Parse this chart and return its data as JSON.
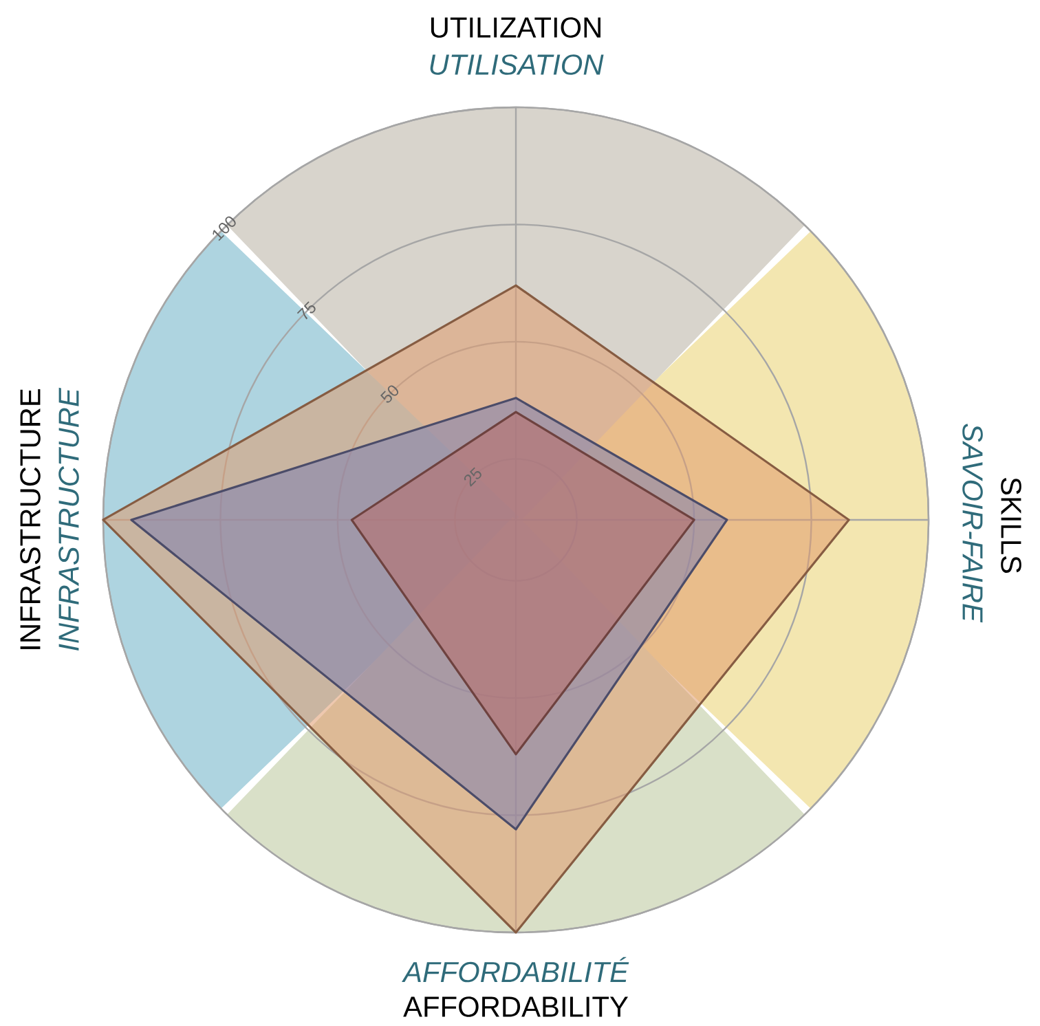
{
  "chart_data": {
    "type": "radar",
    "categories": [
      "UTILIZATION",
      "SKILLS",
      "AFFORDABILITY",
      "INFRASTRUCTURE"
    ],
    "annotations": [
      "UTILISATION",
      "SAVOIR-FAIRE",
      "AFFORDABILITÉ",
      "INFRASTRUCTURE"
    ],
    "ylim": [
      12,
      100
    ],
    "yticks": [
      25,
      50,
      75,
      100
    ],
    "grid": true,
    "series": [
      {
        "color": "#e09a6e",
        "values": [
          62,
          83,
          100,
          100
        ]
      },
      {
        "color": "#7d7fb0",
        "values": [
          38,
          57,
          78,
          94
        ]
      },
      {
        "color": "#b86e6a",
        "values": [
          35,
          50,
          62,
          47
        ]
      }
    ]
  }
}
